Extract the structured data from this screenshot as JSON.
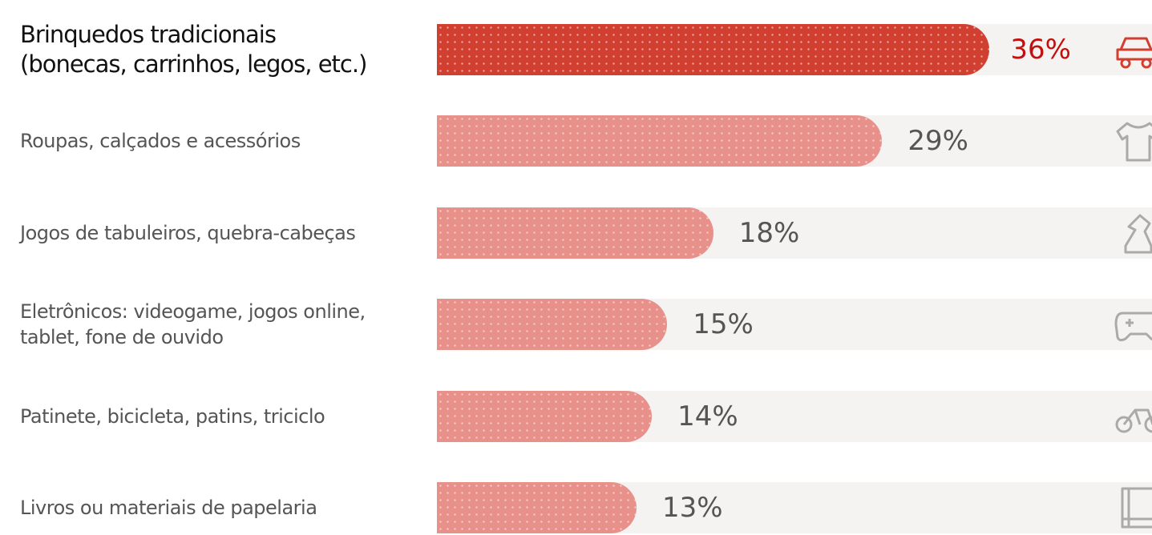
{
  "chart_data": {
    "type": "bar",
    "orientation": "horizontal",
    "categories": [
      "Brinquedos tradicionais\n(bonecas, carrinhos, legos, etc.)",
      "Roupas, calçados e acessórios",
      "Jogos de tabuleiros, quebra-cabeças",
      "Eletrônicos: videogame, jogos online,\ntablet, fone de ouvido",
      "Patinete, bicicleta, patins, triciclo",
      "Livros ou materiais de papelaria"
    ],
    "values": [
      36,
      29,
      18,
      15,
      14,
      13
    ],
    "value_labels": [
      "36%",
      "29%",
      "18%",
      "15%",
      "14%",
      "13%"
    ],
    "colors": [
      "#d13f30",
      "#e8918a",
      "#e8918a",
      "#e8918a",
      "#e8918a",
      "#e8918a"
    ]
  }
}
